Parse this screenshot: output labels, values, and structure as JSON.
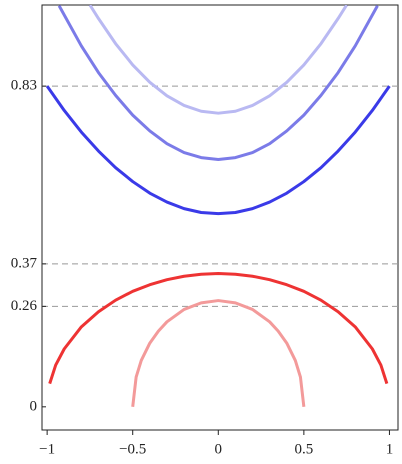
{
  "chart_data": {
    "type": "line",
    "xlim": [
      -1.03,
      1.05
    ],
    "ylim": [
      -0.06,
      1.04
    ],
    "xticks": [
      {
        "value": -1,
        "label": "−1"
      },
      {
        "value": -0.5,
        "label": "−0.5"
      },
      0,
      0.5,
      1
    ],
    "yticks": [
      0,
      0.26,
      0.37,
      0.83
    ],
    "dashed_lines": [
      0.26,
      0.37,
      0.83
    ],
    "series": [
      {
        "color": "#3a3ae8",
        "x": [
          -1,
          -0.9,
          -0.8,
          -0.7,
          -0.6,
          -0.5,
          -0.4,
          -0.3,
          -0.2,
          -0.1,
          0,
          0.1,
          0.2,
          0.3,
          0.4,
          0.5,
          0.6,
          0.7,
          0.8,
          0.9,
          1
        ],
        "values": [
          0.83,
          0.767,
          0.711,
          0.662,
          0.619,
          0.583,
          0.553,
          0.53,
          0.513,
          0.503,
          0.5,
          0.503,
          0.513,
          0.53,
          0.553,
          0.583,
          0.619,
          0.662,
          0.711,
          0.767,
          0.83
        ]
      },
      {
        "color": "#7b7be8",
        "x": [
          -0.93,
          -0.8,
          -0.7,
          -0.6,
          -0.5,
          -0.4,
          -0.3,
          -0.2,
          -0.1,
          0,
          0.1,
          0.2,
          0.3,
          0.4,
          0.5,
          0.6,
          0.7,
          0.8,
          0.93
        ],
        "values": [
          1.038,
          0.934,
          0.865,
          0.806,
          0.755,
          0.714,
          0.681,
          0.658,
          0.645,
          0.64,
          0.645,
          0.658,
          0.681,
          0.714,
          0.755,
          0.806,
          0.865,
          0.934,
          1.038
        ]
      },
      {
        "color": "#b9b9f2",
        "x": [
          -0.75,
          -0.7,
          -0.6,
          -0.5,
          -0.4,
          -0.3,
          -0.2,
          -0.1,
          0,
          0.1,
          0.2,
          0.3,
          0.4,
          0.5,
          0.6,
          0.7,
          0.75
        ],
        "values": [
          1.04,
          1.005,
          0.94,
          0.885,
          0.84,
          0.805,
          0.78,
          0.765,
          0.76,
          0.765,
          0.78,
          0.805,
          0.84,
          0.885,
          0.94,
          1.005,
          1.04
        ]
      },
      {
        "color": "#ee3333",
        "x": [
          -0.985,
          -0.95,
          -0.9,
          -0.8,
          -0.7,
          -0.6,
          -0.5,
          -0.4,
          -0.3,
          -0.2,
          -0.1,
          0,
          0.1,
          0.2,
          0.3,
          0.4,
          0.5,
          0.6,
          0.7,
          0.8,
          0.9,
          0.95,
          0.985
        ],
        "values": [
          0.06,
          0.108,
          0.15,
          0.207,
          0.246,
          0.276,
          0.299,
          0.316,
          0.329,
          0.338,
          0.343,
          0.345,
          0.343,
          0.338,
          0.329,
          0.316,
          0.299,
          0.276,
          0.246,
          0.207,
          0.15,
          0.108,
          0.06
        ]
      },
      {
        "color": "#f39a9a",
        "x": [
          -0.5,
          -0.48,
          -0.45,
          -0.4,
          -0.35,
          -0.3,
          -0.2,
          -0.1,
          0,
          0.1,
          0.2,
          0.3,
          0.35,
          0.4,
          0.45,
          0.48,
          0.5
        ],
        "values": [
          0,
          0.077,
          0.12,
          0.165,
          0.196,
          0.22,
          0.252,
          0.269,
          0.275,
          0.269,
          0.252,
          0.22,
          0.196,
          0.165,
          0.12,
          0.077,
          0
        ]
      }
    ]
  }
}
